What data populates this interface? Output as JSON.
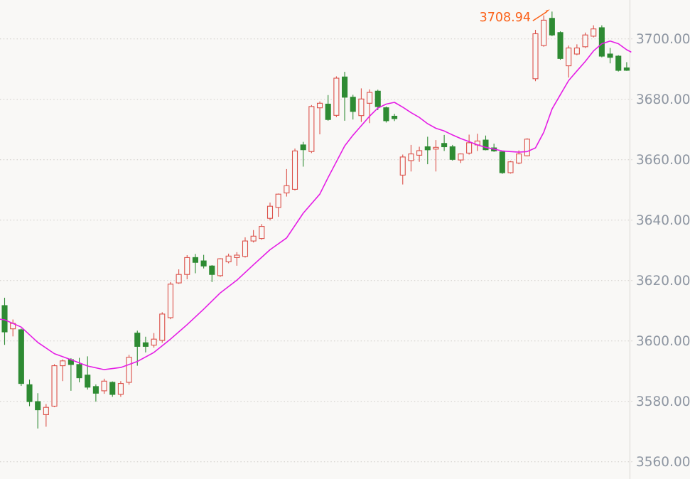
{
  "chart_data": {
    "type": "candlestick",
    "title": "",
    "legend": [],
    "grid": "horizontal-dotted",
    "y_axis": {
      "side": "right",
      "tick_labels": [
        "3700.00",
        "3680.00",
        "3660.00",
        "3640.00",
        "3620.00",
        "3600.00",
        "3580.00",
        "3560.00"
      ],
      "tick_values": [
        3700,
        3680,
        3660,
        3640,
        3620,
        3600,
        3580,
        3560
      ],
      "min": 3552,
      "max": 3713
    },
    "x_axis": {
      "tick_labels": [],
      "candle_count": 76
    },
    "annotation": {
      "label": "3708.94",
      "value": 3708.94,
      "candle_index": 66
    },
    "style": {
      "up_candle": "hollow-red",
      "down_candle": "filled-green",
      "overlay_line": "moving-average-magenta"
    },
    "ohlc": [
      [
        3611.6,
        3614.2,
        3598.6,
        3602.9
      ],
      [
        3603.9,
        3607.0,
        3601.4,
        3605.7
      ],
      [
        3603.6,
        3604.0,
        3585.0,
        3585.8
      ],
      [
        3585.4,
        3587.1,
        3578.3,
        3579.8
      ],
      [
        3579.8,
        3582.6,
        3570.9,
        3577.1
      ],
      [
        3575.5,
        3579.0,
        3571.5,
        3577.9
      ],
      [
        3578.3,
        3592.2,
        3578.0,
        3591.7
      ],
      [
        3591.7,
        3593.8,
        3586.6,
        3593.3
      ],
      [
        3593.7,
        3594.2,
        3583.4,
        3592.1
      ],
      [
        3592.1,
        3594.3,
        3586.2,
        3587.7
      ],
      [
        3588.6,
        3594.8,
        3583.8,
        3584.6
      ],
      [
        3584.8,
        3585.5,
        3579.8,
        3582.6
      ],
      [
        3583.4,
        3587.4,
        3582.4,
        3586.6
      ],
      [
        3586.2,
        3586.5,
        3581.4,
        3582.2
      ],
      [
        3582.2,
        3586.6,
        3581.4,
        3585.8
      ],
      [
        3586.2,
        3595.3,
        3585.4,
        3594.5
      ],
      [
        3602.5,
        3603.3,
        3591.7,
        3598.1
      ],
      [
        3599.3,
        3601.3,
        3596.1,
        3598.1
      ],
      [
        3598.5,
        3602.5,
        3597.7,
        3600.5
      ],
      [
        3600.1,
        3609.4,
        3599.3,
        3608.8
      ],
      [
        3607.6,
        3619.4,
        3607.1,
        3618.7
      ],
      [
        3619.1,
        3623.6,
        3618.8,
        3621.9
      ],
      [
        3621.9,
        3628.3,
        3620.3,
        3627.5
      ],
      [
        3627.5,
        3628.7,
        3622.3,
        3625.9
      ],
      [
        3626.4,
        3628.4,
        3623.9,
        3624.7
      ],
      [
        3624.7,
        3625.0,
        3619.4,
        3621.9
      ],
      [
        3621.5,
        3627.3,
        3621.1,
        3627.1
      ],
      [
        3626.1,
        3628.8,
        3625.6,
        3628.0
      ],
      [
        3627.5,
        3629.3,
        3624.8,
        3628.3
      ],
      [
        3627.9,
        3634.2,
        3627.5,
        3633.0
      ],
      [
        3633.0,
        3636.6,
        3632.5,
        3634.6
      ],
      [
        3633.8,
        3638.6,
        3633.4,
        3637.8
      ],
      [
        3640.5,
        3645.7,
        3639.8,
        3644.5
      ],
      [
        3644.1,
        3648.7,
        3641.0,
        3648.5
      ],
      [
        3648.9,
        3656.8,
        3647.7,
        3651.3
      ],
      [
        3650.1,
        3663.6,
        3649.7,
        3662.8
      ],
      [
        3664.8,
        3665.8,
        3657.6,
        3663.2
      ],
      [
        3662.6,
        3678.0,
        3662.1,
        3677.5
      ],
      [
        3677.1,
        3679.2,
        3668.3,
        3678.6
      ],
      [
        3678.3,
        3681.3,
        3672.8,
        3673.2
      ],
      [
        3674.6,
        3687.5,
        3674.0,
        3686.9
      ],
      [
        3687.3,
        3689.0,
        3672.8,
        3680.6
      ],
      [
        3680.6,
        3681.4,
        3673.2,
        3675.9
      ],
      [
        3674.5,
        3683.5,
        3672.4,
        3680.0
      ],
      [
        3678.6,
        3683.2,
        3672.0,
        3682.2
      ],
      [
        3682.6,
        3683.1,
        3676.3,
        3677.5
      ],
      [
        3677.1,
        3677.5,
        3672.2,
        3672.8
      ],
      [
        3674.3,
        3675.1,
        3672.7,
        3673.5
      ],
      [
        3654.8,
        3661.6,
        3651.7,
        3660.8
      ],
      [
        3659.6,
        3664.8,
        3656.0,
        3661.8
      ],
      [
        3661.4,
        3664.2,
        3659.2,
        3662.9
      ],
      [
        3664.2,
        3667.5,
        3658.4,
        3663.2
      ],
      [
        3663.4,
        3666.4,
        3656.0,
        3664.0
      ],
      [
        3665.3,
        3668.1,
        3662.8,
        3664.2
      ],
      [
        3664.2,
        3664.8,
        3659.6,
        3660.0
      ],
      [
        3659.8,
        3662.0,
        3658.8,
        3661.8
      ],
      [
        3662.1,
        3668.2,
        3661.6,
        3665.5
      ],
      [
        3664.8,
        3668.5,
        3662.8,
        3666.1
      ],
      [
        3666.4,
        3667.9,
        3663.0,
        3663.2
      ],
      [
        3663.8,
        3665.2,
        3662.5,
        3662.8
      ],
      [
        3662.5,
        3662.8,
        3655.2,
        3655.6
      ],
      [
        3655.6,
        3659.5,
        3655.3,
        3659.2
      ],
      [
        3658.8,
        3663.0,
        3658.4,
        3661.8
      ],
      [
        3661.2,
        3667.0,
        3661.0,
        3666.7
      ],
      [
        3686.7,
        3702.9,
        3685.9,
        3701.6
      ],
      [
        3697.7,
        3707.7,
        3697.3,
        3706.1
      ],
      [
        3706.7,
        3708.94,
        3700.8,
        3701.2
      ],
      [
        3702.0,
        3702.4,
        3693.0,
        3693.4
      ],
      [
        3691.0,
        3697.7,
        3687.1,
        3696.9
      ],
      [
        3694.9,
        3698.1,
        3694.5,
        3696.9
      ],
      [
        3697.3,
        3702.0,
        3696.9,
        3701.2
      ],
      [
        3700.8,
        3704.4,
        3700.4,
        3703.2
      ],
      [
        3703.6,
        3704.4,
        3693.8,
        3694.2
      ],
      [
        3694.9,
        3696.9,
        3691.8,
        3693.8
      ],
      [
        3694.2,
        3694.5,
        3689.1,
        3689.5
      ],
      [
        3690.3,
        3692.2,
        3689.3,
        3689.5
      ]
    ],
    "ma_points": [
      [
        -0.6,
        3607.1
      ],
      [
        0,
        3606.9
      ],
      [
        2,
        3604.5
      ],
      [
        4,
        3599.4
      ],
      [
        6,
        3595.7
      ],
      [
        8,
        3593.7
      ],
      [
        10,
        3591.6
      ],
      [
        12,
        3590.4
      ],
      [
        14,
        3591.1
      ],
      [
        16,
        3593.1
      ],
      [
        18,
        3596.1
      ],
      [
        20,
        3600.5
      ],
      [
        22,
        3605.3
      ],
      [
        24,
        3610.4
      ],
      [
        26,
        3615.8
      ],
      [
        28,
        3620.0
      ],
      [
        30,
        3625.1
      ],
      [
        32,
        3630.1
      ],
      [
        34,
        3634.0
      ],
      [
        36,
        3642.2
      ],
      [
        38,
        3648.5
      ],
      [
        39,
        3654.0
      ],
      [
        41,
        3664.5
      ],
      [
        42,
        3668.0
      ],
      [
        44,
        3674.3
      ],
      [
        45,
        3677.0
      ],
      [
        46,
        3678.3
      ],
      [
        47,
        3678.9
      ],
      [
        48,
        3677.3
      ],
      [
        49,
        3675.5
      ],
      [
        50,
        3673.9
      ],
      [
        51,
        3671.8
      ],
      [
        52,
        3670.3
      ],
      [
        53,
        3669.4
      ],
      [
        54,
        3668.1
      ],
      [
        55,
        3666.9
      ],
      [
        56,
        3665.9
      ],
      [
        57,
        3664.8
      ],
      [
        58,
        3664.0
      ],
      [
        59,
        3663.4
      ],
      [
        60,
        3662.8
      ],
      [
        61,
        3662.6
      ],
      [
        62,
        3662.4
      ],
      [
        63,
        3662.6
      ],
      [
        64,
        3663.8
      ],
      [
        65,
        3669.0
      ],
      [
        66,
        3676.7
      ],
      [
        67,
        3681.4
      ],
      [
        68,
        3686.1
      ],
      [
        69,
        3689.3
      ],
      [
        70,
        3692.4
      ],
      [
        71,
        3695.9
      ],
      [
        72,
        3698.3
      ],
      [
        73,
        3699.2
      ],
      [
        74,
        3698.3
      ],
      [
        75,
        3696.3
      ],
      [
        75.5,
        3695.6
      ]
    ]
  },
  "colors": {
    "background": "#f9f8f6",
    "up": "#dc5049",
    "down": "#2e8b33",
    "ma_line": "#e51de5",
    "annotation": "#fb6119",
    "axis_text": "#8e96a2",
    "grid": "#cfccc8",
    "axis_line": "#d9d7d3"
  }
}
